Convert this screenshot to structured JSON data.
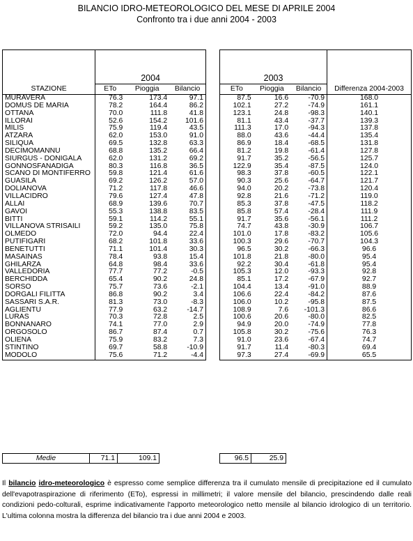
{
  "title": "BILANCIO IDRO-METEOROLOGICO DEL MESE DI APRILE 2004",
  "subtitle": "Confronto tra i due anni 2004 - 2003",
  "year_a": "2004",
  "year_b": "2003",
  "headers": {
    "stazione": "STAZIONE",
    "eto": "ETo",
    "pioggia": "Pioggia",
    "bilancio": "Bilancio",
    "differenza": "Differenza 2004-2003"
  },
  "rows": [
    {
      "stazione": "MURAVERA",
      "a_eto": "76.3",
      "a_pio": "173.4",
      "a_bil": "97.1",
      "b_eto": "87.5",
      "b_pio": "16.6",
      "b_bil": "-70.9",
      "diff": "168.0"
    },
    {
      "stazione": "DOMUS DE MARIA",
      "a_eto": "78.2",
      "a_pio": "164.4",
      "a_bil": "86.2",
      "b_eto": "102.1",
      "b_pio": "27.2",
      "b_bil": "-74.9",
      "diff": "161.1"
    },
    {
      "stazione": "OTTANA",
      "a_eto": "70.0",
      "a_pio": "111.8",
      "a_bil": "41.8",
      "b_eto": "123.1",
      "b_pio": "24.8",
      "b_bil": "-98.3",
      "diff": "140.1"
    },
    {
      "stazione": "ILLORAI",
      "a_eto": "52.6",
      "a_pio": "154.2",
      "a_bil": "101.6",
      "b_eto": "81.1",
      "b_pio": "43.4",
      "b_bil": "-37.7",
      "diff": "139.3"
    },
    {
      "stazione": "MILIS",
      "a_eto": "75.9",
      "a_pio": "119.4",
      "a_bil": "43.5",
      "b_eto": "111.3",
      "b_pio": "17.0",
      "b_bil": "-94.3",
      "diff": "137.8"
    },
    {
      "stazione": "ATZARA",
      "a_eto": "62.0",
      "a_pio": "153.0",
      "a_bil": "91.0",
      "b_eto": "88.0",
      "b_pio": "43.6",
      "b_bil": "-44.4",
      "diff": "135.4"
    },
    {
      "stazione": "SILIQUA",
      "a_eto": "69.5",
      "a_pio": "132.8",
      "a_bil": "63.3",
      "b_eto": "86.9",
      "b_pio": "18.4",
      "b_bil": "-68.5",
      "diff": "131.8"
    },
    {
      "stazione": "DECIMOMANNU",
      "a_eto": "68.8",
      "a_pio": "135.2",
      "a_bil": "66.4",
      "b_eto": "81.2",
      "b_pio": "19.8",
      "b_bil": "-61.4",
      "diff": "127.8"
    },
    {
      "stazione": "SIURGUS - DONIGALA",
      "a_eto": "62.0",
      "a_pio": "131.2",
      "a_bil": "69.2",
      "b_eto": "91.7",
      "b_pio": "35.2",
      "b_bil": "-56.5",
      "diff": "125.7"
    },
    {
      "stazione": "GONNOSFANADIGA",
      "a_eto": "80.3",
      "a_pio": "116.8",
      "a_bil": "36.5",
      "b_eto": "122.9",
      "b_pio": "35.4",
      "b_bil": "-87.5",
      "diff": "124.0"
    },
    {
      "stazione": "SCANO DI MONTIFERRO",
      "a_eto": "59.8",
      "a_pio": "121.4",
      "a_bil": "61.6",
      "b_eto": "98.3",
      "b_pio": "37.8",
      "b_bil": "-60.5",
      "diff": "122.1"
    },
    {
      "stazione": "GUASILA",
      "a_eto": "69.2",
      "a_pio": "126.2",
      "a_bil": "57.0",
      "b_eto": "90.3",
      "b_pio": "25.6",
      "b_bil": "-64.7",
      "diff": "121.7"
    },
    {
      "stazione": "DOLIANOVA",
      "a_eto": "71.2",
      "a_pio": "117.8",
      "a_bil": "46.6",
      "b_eto": "94.0",
      "b_pio": "20.2",
      "b_bil": "-73.8",
      "diff": "120.4"
    },
    {
      "stazione": "VILLACIDRO",
      "a_eto": "79.6",
      "a_pio": "127.4",
      "a_bil": "47.8",
      "b_eto": "92.8",
      "b_pio": "21.6",
      "b_bil": "-71.2",
      "diff": "119.0"
    },
    {
      "stazione": "ALLAI",
      "a_eto": "68.9",
      "a_pio": "139.6",
      "a_bil": "70.7",
      "b_eto": "85.3",
      "b_pio": "37.8",
      "b_bil": "-47.5",
      "diff": "118.2"
    },
    {
      "stazione": "GAVOI",
      "a_eto": "55.3",
      "a_pio": "138.8",
      "a_bil": "83.5",
      "b_eto": "85.8",
      "b_pio": "57.4",
      "b_bil": "-28.4",
      "diff": "111.9"
    },
    {
      "stazione": "BITTI",
      "a_eto": "59.1",
      "a_pio": "114.2",
      "a_bil": "55.1",
      "b_eto": "91.7",
      "b_pio": "35.6",
      "b_bil": "-56.1",
      "diff": "111.2"
    },
    {
      "stazione": "VILLANOVA STRISAILI",
      "a_eto": "59.2",
      "a_pio": "135.0",
      "a_bil": "75.8",
      "b_eto": "74.7",
      "b_pio": "43.8",
      "b_bil": "-30.9",
      "diff": "106.7"
    },
    {
      "stazione": "OLMEDO",
      "a_eto": "72.0",
      "a_pio": "94.4",
      "a_bil": "22.4",
      "b_eto": "101.0",
      "b_pio": "17.8",
      "b_bil": "-83.2",
      "diff": "105.6"
    },
    {
      "stazione": "PUTIFIGARI",
      "a_eto": "68.2",
      "a_pio": "101.8",
      "a_bil": "33.6",
      "b_eto": "100.3",
      "b_pio": "29.6",
      "b_bil": "-70.7",
      "diff": "104.3"
    },
    {
      "stazione": "BENETUTTI",
      "a_eto": "71.1",
      "a_pio": "101.4",
      "a_bil": "30.3",
      "b_eto": "96.5",
      "b_pio": "30.2",
      "b_bil": "-66.3",
      "diff": "96.6"
    },
    {
      "stazione": "MASAINAS",
      "a_eto": "78.4",
      "a_pio": "93.8",
      "a_bil": "15.4",
      "b_eto": "101.8",
      "b_pio": "21.8",
      "b_bil": "-80.0",
      "diff": "95.4"
    },
    {
      "stazione": "GHILARZA",
      "a_eto": "64.8",
      "a_pio": "98.4",
      "a_bil": "33.6",
      "b_eto": "92.2",
      "b_pio": "30.4",
      "b_bil": "-61.8",
      "diff": "95.4"
    },
    {
      "stazione": "VALLEDORIA",
      "a_eto": "77.7",
      "a_pio": "77.2",
      "a_bil": "-0.5",
      "b_eto": "105.3",
      "b_pio": "12.0",
      "b_bil": "-93.3",
      "diff": "92.8"
    },
    {
      "stazione": "BERCHIDDA",
      "a_eto": "65.4",
      "a_pio": "90.2",
      "a_bil": "24.8",
      "b_eto": "85.1",
      "b_pio": "17.2",
      "b_bil": "-67.9",
      "diff": "92.7"
    },
    {
      "stazione": "SORSO",
      "a_eto": "75.7",
      "a_pio": "73.6",
      "a_bil": "-2.1",
      "b_eto": "104.4",
      "b_pio": "13.4",
      "b_bil": "-91.0",
      "diff": "88.9"
    },
    {
      "stazione": "DORGALI FILITTA",
      "a_eto": "86.8",
      "a_pio": "90.2",
      "a_bil": "3.4",
      "b_eto": "106.6",
      "b_pio": "22.4",
      "b_bil": "-84.2",
      "diff": "87.6"
    },
    {
      "stazione": "SASSARI S.A.R.",
      "a_eto": "81.3",
      "a_pio": "73.0",
      "a_bil": "-8.3",
      "b_eto": "106.0",
      "b_pio": "10.2",
      "b_bil": "-95.8",
      "diff": "87.5"
    },
    {
      "stazione": "AGLIENTU",
      "a_eto": "77.9",
      "a_pio": "63.2",
      "a_bil": "-14.7",
      "b_eto": "108.9",
      "b_pio": "7.6",
      "b_bil": "-101.3",
      "diff": "86.6"
    },
    {
      "stazione": "LURAS",
      "a_eto": "70.3",
      "a_pio": "72.8",
      "a_bil": "2.5",
      "b_eto": "100.6",
      "b_pio": "20.6",
      "b_bil": "-80.0",
      "diff": "82.5"
    },
    {
      "stazione": "BONNANARO",
      "a_eto": "74.1",
      "a_pio": "77.0",
      "a_bil": "2.9",
      "b_eto": "94.9",
      "b_pio": "20.0",
      "b_bil": "-74.9",
      "diff": "77.8"
    },
    {
      "stazione": "ORGOSOLO",
      "a_eto": "86.7",
      "a_pio": "87.4",
      "a_bil": "0.7",
      "b_eto": "105.8",
      "b_pio": "30.2",
      "b_bil": "-75.6",
      "diff": "76.3"
    },
    {
      "stazione": "OLIENA",
      "a_eto": "75.9",
      "a_pio": "83.2",
      "a_bil": "7.3",
      "b_eto": "91.0",
      "b_pio": "23.6",
      "b_bil": "-67.4",
      "diff": "74.7"
    },
    {
      "stazione": "STINTINO",
      "a_eto": "69.7",
      "a_pio": "58.8",
      "a_bil": "-10.9",
      "b_eto": "91.7",
      "b_pio": "11.4",
      "b_bil": "-80.3",
      "diff": "69.4"
    },
    {
      "stazione": "MODOLO",
      "a_eto": "75.6",
      "a_pio": "71.2",
      "a_bil": "-4.4",
      "b_eto": "97.3",
      "b_pio": "27.4",
      "b_bil": "-69.9",
      "diff": "65.5"
    }
  ],
  "medie": {
    "label": "Medie",
    "a_eto": "71.1",
    "a_pio": "109.1",
    "b_eto": "96.5",
    "b_pio": "25.9"
  },
  "note": {
    "prefix": "Il ",
    "term1": "bilancio",
    "space": " ",
    "term2": "idro-meteorologico",
    "body": " è espresso come semplice differenza tra il cumulato mensile di precipitazione ed il cumulato dell'evapotraspirazione di riferimento (ETo), espressi in millimetri; il valore mensile del bilancio, prescindendo dalle reali condizioni pedo-colturali, esprime indicativamente l'apporto meteorologico netto mensile al bilancio idrologico di un territorio. L'ultima colonna mostra la differenza del bilancio tra i due anni 2004 e 2003."
  }
}
